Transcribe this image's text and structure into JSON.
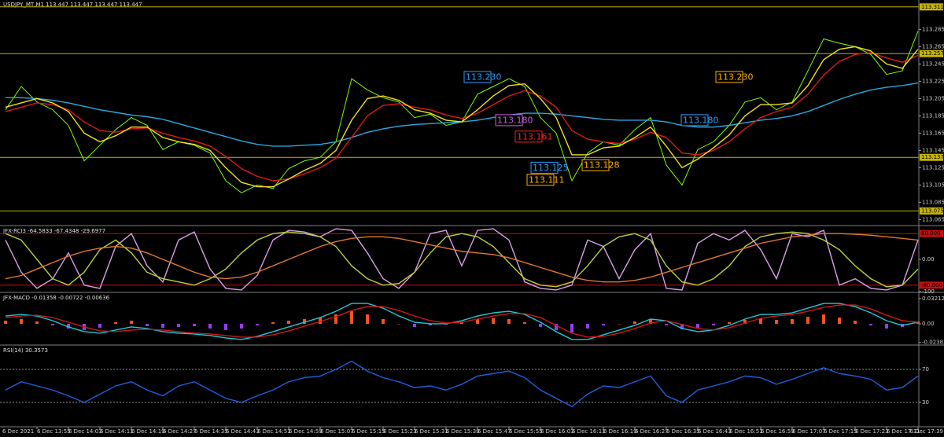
{
  "chart_data": [
    {
      "type": "line",
      "title": "USDJPY_MT,M1 113.447 113.447 113.447 113.447",
      "date_label": "6 Dec 2021",
      "categories": [
        null,
        null,
        "6 Dec 13:55",
        null,
        "6 Dec 14:03",
        null,
        "6 Dec 14:11",
        null,
        "6 Dec 14:19",
        null,
        "6 Dec 14:27",
        null,
        "6 Dec 14:35",
        null,
        "6 Dec 14:43",
        null,
        "6 Dec 14:51",
        null,
        "6 Dec 14:59",
        null,
        "6 Dec 15:07",
        null,
        "6 Dec 15:15",
        null,
        "6 Dec 15:23",
        null,
        "6 Dec 15:31",
        null,
        "6 Dec 15:39",
        null,
        "6 Dec 15:47",
        null,
        "6 Dec 15:55",
        null,
        "6 Dec 16:03",
        null,
        "6 Dec 16:11",
        null,
        "6 Dec 16:19",
        null,
        "6 Dec 16:27",
        null,
        "6 Dec 16:35",
        null,
        "6 Dec 16:43",
        null,
        "6 Dec 16:51",
        null,
        "6 Dec 16:59",
        null,
        "6 Dec 17:07",
        null,
        "6 Dec 17:15",
        null,
        "6 Dec 17:23",
        null,
        "6 Dec 17:31",
        null,
        "6 Dec 17:39"
      ],
      "ylim": [
        113.059,
        113.319
      ],
      "yticks": [
        113.285,
        113.265,
        113.245,
        113.225,
        113.205,
        113.185,
        113.165,
        113.145,
        113.125,
        113.105,
        113.085,
        113.065
      ],
      "levels": [
        113.311,
        113.257,
        113.137,
        113.075
      ],
      "level_color": "#c8b400",
      "series": [
        {
          "color": "#7cfc00",
          "values": [
            113.192,
            113.219,
            113.201,
            113.192,
            113.174,
            113.133,
            113.151,
            113.169,
            113.183,
            113.174,
            113.146,
            113.155,
            113.151,
            113.142,
            113.11,
            113.096,
            113.105,
            113.101,
            113.124,
            113.133,
            113.137,
            113.155,
            113.228,
            113.215,
            113.206,
            113.201,
            113.183,
            113.187,
            113.174,
            113.178,
            113.21,
            113.219,
            113.228,
            113.219,
            113.183,
            113.165,
            113.11,
            113.142,
            113.155,
            113.151,
            113.169,
            113.183,
            113.128,
            113.105,
            113.146,
            113.155,
            113.174,
            113.201,
            113.206,
            113.192,
            113.201,
            113.237,
            113.274,
            113.269,
            113.265,
            113.256,
            113.233,
            113.237,
            113.283
          ]
        },
        {
          "color": "#2aa8e0",
          "values": [
            113.206,
            113.206,
            113.205,
            113.203,
            113.2,
            113.196,
            113.192,
            113.189,
            113.186,
            113.184,
            113.181,
            113.176,
            113.171,
            113.166,
            113.161,
            113.156,
            113.152,
            113.15,
            113.15,
            113.151,
            113.152,
            113.155,
            113.16,
            113.166,
            113.17,
            113.173,
            113.175,
            113.176,
            113.177,
            113.178,
            113.18,
            113.183,
            113.186,
            113.188,
            113.188,
            113.187,
            113.185,
            113.183,
            113.181,
            113.18,
            113.18,
            113.18,
            113.178,
            113.174,
            113.172,
            113.172,
            113.174,
            113.177,
            113.18,
            113.182,
            113.185,
            113.19,
            113.197,
            113.204,
            113.21,
            113.215,
            113.218,
            113.22,
            113.223
          ]
        },
        {
          "color": "#e01818",
          "values": [
            113.19,
            113.195,
            113.2,
            113.198,
            113.192,
            113.178,
            113.168,
            113.166,
            113.17,
            113.171,
            113.165,
            113.16,
            113.156,
            113.15,
            113.138,
            113.124,
            113.115,
            113.11,
            113.112,
            113.118,
            113.125,
            113.136,
            113.16,
            113.185,
            113.197,
            113.199,
            113.195,
            113.192,
            113.186,
            113.182,
            113.188,
            113.198,
            113.208,
            113.214,
            113.208,
            113.195,
            113.168,
            113.158,
            113.155,
            113.153,
            113.158,
            113.166,
            113.16,
            113.142,
            113.14,
            113.145,
            113.155,
            113.17,
            113.183,
            113.19,
            113.195,
            113.21,
            113.232,
            113.248,
            113.256,
            113.258,
            113.252,
            113.247,
            113.255
          ]
        },
        {
          "color": "#f0e020",
          "values": [
            113.195,
            113.2,
            113.205,
            113.2,
            113.19,
            113.165,
            113.155,
            113.162,
            113.172,
            113.172,
            113.16,
            113.155,
            113.152,
            113.145,
            113.125,
            113.108,
            113.103,
            113.103,
            113.112,
            113.122,
            113.13,
            113.145,
            113.18,
            113.205,
            113.208,
            113.203,
            113.192,
            113.188,
            113.18,
            113.178,
            113.192,
            113.208,
            113.22,
            113.222,
            113.205,
            113.183,
            113.14,
            113.14,
            113.148,
            113.15,
            113.16,
            113.172,
            113.15,
            113.125,
            113.135,
            113.148,
            113.163,
            113.185,
            113.198,
            113.198,
            113.2,
            113.22,
            113.25,
            113.262,
            113.265,
            113.26,
            113.245,
            113.24,
            113.262
          ]
        }
      ],
      "annotations": [
        {
          "value": 113.23,
          "label": "113.230",
          "color": "#2aa0ff"
        },
        {
          "value": 113.18,
          "label": "113.180",
          "color": "#c860d8"
        },
        {
          "value": 113.161,
          "label": "113.161",
          "color": "#ff2020"
        },
        {
          "value": 113.125,
          "label": "113.125",
          "color": "#2aa0ff"
        },
        {
          "value": 113.111,
          "label": "113.111",
          "color": "#ffb000"
        },
        {
          "value": 113.128,
          "label": "113.128",
          "color": "#ffb000"
        },
        {
          "value": 113.23,
          "label": "113.230",
          "color": "#ffb000"
        },
        {
          "value": 113.18,
          "label": "113.180",
          "color": "#2aa0ff"
        }
      ]
    },
    {
      "type": "line",
      "title": "JFX-RCI3 -64.5833 -67.4348 -29.6977",
      "ylim": [
        -100,
        100
      ],
      "yticks": [
        {
          "value": 0,
          "label": "0.00"
        },
        -100
      ],
      "levels": [
        {
          "value": 80,
          "label": "80.000"
        },
        {
          "value": -80,
          "label": "-80.000"
        }
      ],
      "level_color": "#c01010",
      "series": [
        {
          "color": "#d8a0e8",
          "values": [
            60,
            -40,
            -90,
            -60,
            20,
            -80,
            -90,
            40,
            80,
            -20,
            -70,
            60,
            85,
            -30,
            -90,
            -95,
            -50,
            60,
            90,
            85,
            70,
            95,
            90,
            20,
            -60,
            -90,
            -40,
            80,
            90,
            -20,
            90,
            95,
            60,
            -70,
            -90,
            -95,
            -80,
            60,
            40,
            -60,
            30,
            80,
            -90,
            -95,
            50,
            80,
            60,
            90,
            30,
            -60,
            80,
            70,
            90,
            -80,
            -60,
            -90,
            -95,
            -80,
            60
          ]
        },
        {
          "color": "#b8d040",
          "values": [
            80,
            60,
            0,
            -60,
            -80,
            -40,
            30,
            60,
            20,
            -40,
            -60,
            -70,
            -80,
            -60,
            -30,
            20,
            60,
            80,
            85,
            80,
            70,
            40,
            -20,
            -60,
            -80,
            -75,
            -40,
            20,
            70,
            80,
            70,
            40,
            -10,
            -60,
            -80,
            -85,
            -70,
            -20,
            40,
            70,
            80,
            60,
            -20,
            -70,
            -80,
            -60,
            -20,
            40,
            70,
            80,
            85,
            80,
            60,
            30,
            -20,
            -60,
            -85,
            -80,
            -30
          ]
        },
        {
          "color": "#e07830",
          "values": [
            -60,
            -50,
            -30,
            -10,
            10,
            25,
            35,
            40,
            35,
            20,
            0,
            -20,
            -40,
            -55,
            -60,
            -55,
            -40,
            -20,
            0,
            20,
            40,
            55,
            65,
            70,
            70,
            65,
            55,
            45,
            35,
            25,
            20,
            15,
            5,
            -10,
            -25,
            -40,
            -55,
            -65,
            -70,
            -70,
            -65,
            -55,
            -40,
            -25,
            -10,
            5,
            20,
            35,
            50,
            60,
            70,
            75,
            80,
            80,
            78,
            75,
            70,
            65,
            60
          ]
        }
      ]
    },
    {
      "type": "line",
      "title": "JFX-MACD -0.01358 -0.00722 -0.00636",
      "ylim": [
        -0.0281,
        0.0381
      ],
      "yticks": [
        0.03212,
        {
          "value": 0,
          "label": "0.00"
        },
        -0.02383
      ],
      "histogram": {
        "up_color": "#ff5020",
        "down_color": "#9040f0",
        "values": [
          0.004,
          0.006,
          0.003,
          -0.002,
          -0.006,
          -0.008,
          -0.005,
          0.002,
          0.004,
          -0.003,
          -0.005,
          -0.004,
          -0.003,
          -0.006,
          -0.008,
          -0.006,
          -0.002,
          0.002,
          0.004,
          0.006,
          0.008,
          0.012,
          0.016,
          0.012,
          0.006,
          0,
          -0.004,
          -0.002,
          -0.001,
          0.002,
          0.006,
          0.007,
          0.006,
          0.002,
          -0.004,
          -0.008,
          -0.011,
          -0.006,
          -0.002,
          0,
          0.003,
          0.006,
          -0.002,
          -0.007,
          -0.005,
          -0.002,
          0.002,
          0.005,
          0.007,
          0.005,
          0.006,
          0.009,
          0.012,
          0.008,
          0.004,
          -0.002,
          -0.006,
          -0.004,
          0.003
        ]
      },
      "series": [
        {
          "color": "#20c8d8",
          "values": [
            0.01,
            0.012,
            0.01,
            0.004,
            -0.004,
            -0.01,
            -0.012,
            -0.008,
            -0.004,
            -0.006,
            -0.01,
            -0.012,
            -0.013,
            -0.015,
            -0.018,
            -0.02,
            -0.016,
            -0.01,
            -0.004,
            0.002,
            0.008,
            0.016,
            0.026,
            0.026,
            0.02,
            0.01,
            0.002,
            0,
            0,
            0.004,
            0.01,
            0.014,
            0.016,
            0.012,
            0.002,
            -0.01,
            -0.02,
            -0.02,
            -0.014,
            -0.008,
            -0.002,
            0.006,
            0.004,
            -0.006,
            -0.01,
            -0.008,
            -0.002,
            0.006,
            0.012,
            0.012,
            0.014,
            0.02,
            0.026,
            0.026,
            0.022,
            0.014,
            0.004,
            -0.002,
            0.002
          ]
        },
        {
          "color": "#d01818",
          "values": [
            0.008,
            0.01,
            0.011,
            0.008,
            0.002,
            -0.004,
            -0.009,
            -0.01,
            -0.008,
            -0.007,
            -0.008,
            -0.01,
            -0.012,
            -0.013,
            -0.015,
            -0.017,
            -0.017,
            -0.014,
            -0.009,
            -0.003,
            0.003,
            0.009,
            0.017,
            0.022,
            0.022,
            0.017,
            0.01,
            0.004,
            0.001,
            0.002,
            0.006,
            0.01,
            0.013,
            0.013,
            0.008,
            -0.002,
            -0.012,
            -0.017,
            -0.016,
            -0.012,
            -0.006,
            0.001,
            0.004,
            -0.001,
            -0.006,
            -0.008,
            -0.005,
            0.001,
            0.007,
            0.01,
            0.012,
            0.016,
            0.021,
            0.024,
            0.024,
            0.019,
            0.011,
            0.004,
            0.002
          ]
        }
      ]
    },
    {
      "type": "line",
      "title": "RSI(14) 30.3573",
      "ylim": [
        0,
        100
      ],
      "yticks": [
        70,
        30
      ],
      "grid": true,
      "series": [
        {
          "color": "#2060e0",
          "values": [
            45,
            55,
            50,
            45,
            38,
            30,
            40,
            50,
            55,
            45,
            38,
            50,
            55,
            45,
            35,
            30,
            38,
            45,
            55,
            60,
            62,
            70,
            80,
            68,
            60,
            55,
            48,
            50,
            45,
            52,
            62,
            65,
            68,
            60,
            45,
            35,
            25,
            40,
            50,
            48,
            55,
            62,
            38,
            30,
            45,
            50,
            55,
            62,
            60,
            52,
            58,
            65,
            72,
            65,
            62,
            58,
            45,
            48,
            62
          ]
        }
      ]
    }
  ]
}
